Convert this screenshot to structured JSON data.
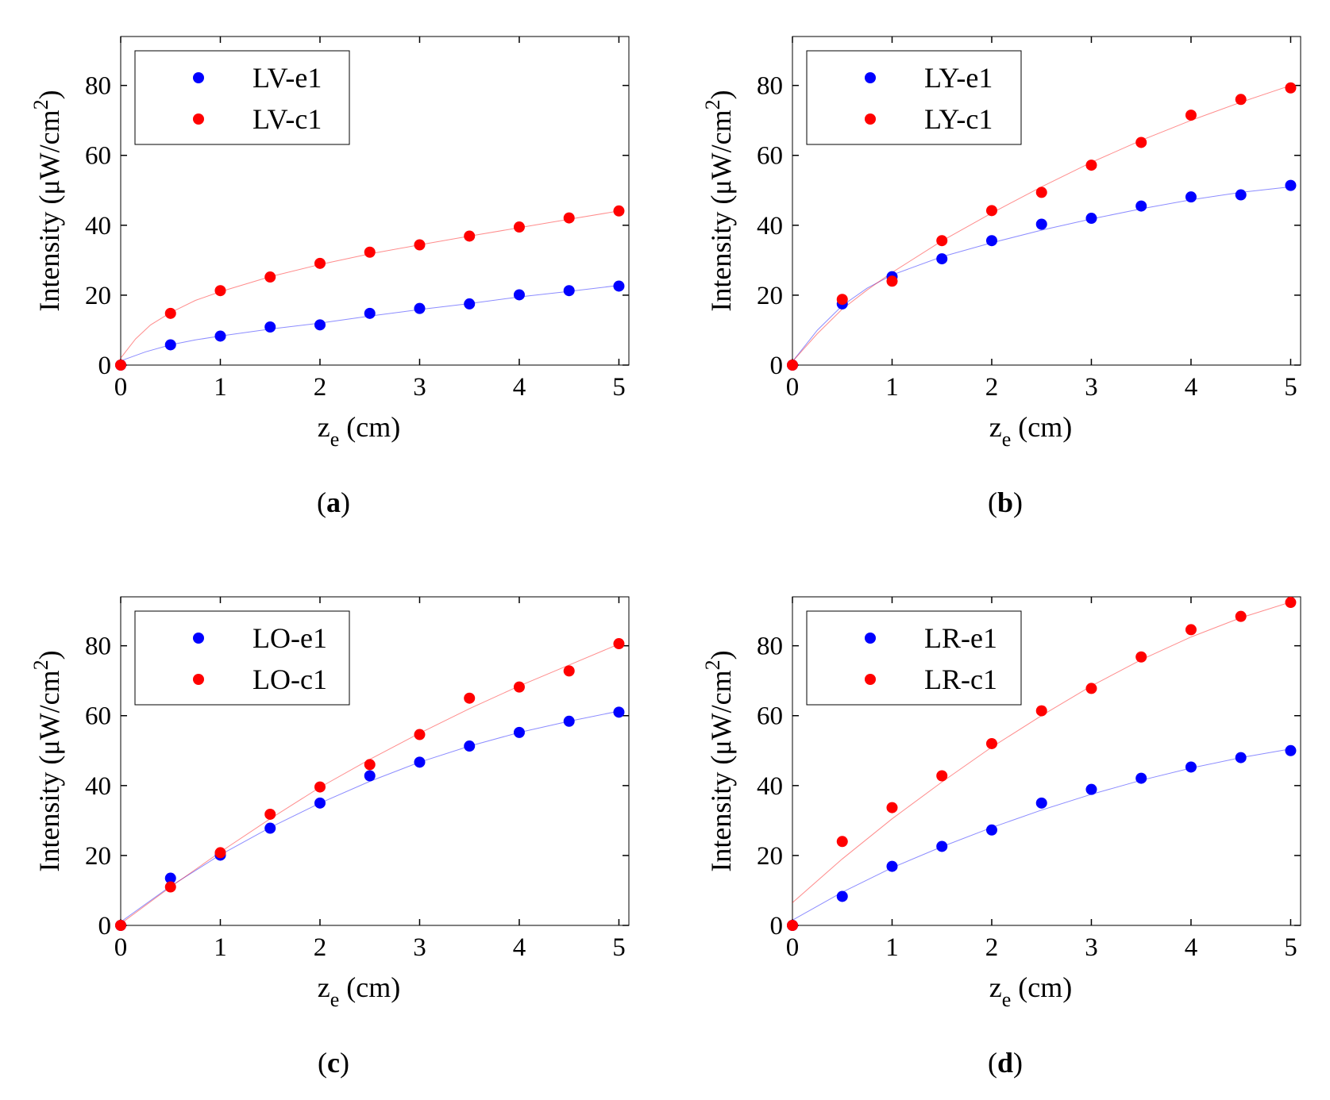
{
  "chart_data": [
    {
      "id": "a",
      "type": "scatter",
      "caption": {
        "open": "(",
        "letter": "a",
        "close": ")"
      },
      "xlabel": "z",
      "xlabel_sub": "e",
      "xlabel_unit": " (cm)",
      "ylabel": "Intensity (μW/cm",
      "ylabel_sup": "2",
      "ylabel_close": ")",
      "xlim": [
        0,
        5.1
      ],
      "ylim": [
        0,
        94
      ],
      "xticks": [
        0,
        1,
        2,
        3,
        4,
        5
      ],
      "yticks": [
        0,
        20,
        40,
        60,
        80
      ],
      "legend_position": "top-left",
      "series": [
        {
          "name": "LV-e1",
          "color": "#0000ff",
          "x": [
            0,
            0.5,
            1,
            1.5,
            2,
            2.5,
            3,
            3.5,
            4,
            4.5,
            5
          ],
          "y": [
            0,
            5.8,
            8.3,
            10.9,
            11.5,
            14.8,
            16.2,
            17.5,
            20.1,
            21.3,
            22.6
          ],
          "fit": [
            [
              0,
              1.2
            ],
            [
              0.25,
              3.8
            ],
            [
              0.5,
              5.8
            ],
            [
              0.75,
              7.2
            ],
            [
              1,
              8.3
            ],
            [
              1.5,
              10.3
            ],
            [
              2,
              12
            ],
            [
              2.5,
              14
            ],
            [
              3,
              15.9
            ],
            [
              3.5,
              17.6
            ],
            [
              4,
              19.5
            ],
            [
              4.5,
              21.1
            ],
            [
              5,
              22.8
            ]
          ]
        },
        {
          "name": "LV-c1",
          "color": "#ff0000",
          "x": [
            0,
            0.5,
            1,
            1.5,
            2,
            2.5,
            3,
            3.5,
            4,
            4.5,
            5
          ],
          "y": [
            0,
            14.8,
            21.3,
            25.2,
            29.1,
            32.3,
            34.4,
            36.9,
            39.5,
            42.1,
            44.1
          ],
          "fit": [
            [
              0,
              2
            ],
            [
              0.15,
              7.5
            ],
            [
              0.3,
              11.5
            ],
            [
              0.5,
              15
            ],
            [
              0.75,
              18.5
            ],
            [
              1,
              21
            ],
            [
              1.5,
              25.3
            ],
            [
              2,
              28.8
            ],
            [
              2.5,
              31.8
            ],
            [
              3,
              34.4
            ],
            [
              3.5,
              36.9
            ],
            [
              4,
              39.3
            ],
            [
              4.5,
              41.7
            ],
            [
              5,
              44.1
            ]
          ]
        }
      ]
    },
    {
      "id": "b",
      "type": "scatter",
      "caption": {
        "open": "(",
        "letter": "b",
        "close": ")"
      },
      "xlabel": "z",
      "xlabel_sub": "e",
      "xlabel_unit": " (cm)",
      "ylabel": "Intensity (μW/cm",
      "ylabel_sup": "2",
      "ylabel_close": ")",
      "xlim": [
        0,
        5.1
      ],
      "ylim": [
        0,
        94
      ],
      "xticks": [
        0,
        1,
        2,
        3,
        4,
        5
      ],
      "yticks": [
        0,
        20,
        40,
        60,
        80
      ],
      "legend_position": "top-left",
      "series": [
        {
          "name": "LY-e1",
          "color": "#0000ff",
          "x": [
            0,
            0.5,
            1,
            1.5,
            2,
            2.5,
            3,
            3.5,
            4,
            4.5,
            5
          ],
          "y": [
            0,
            17.5,
            25.3,
            30.4,
            35.6,
            40.3,
            42,
            45.5,
            48.1,
            48.7,
            51.4
          ],
          "fit": [
            [
              0,
              1
            ],
            [
              0.25,
              10
            ],
            [
              0.5,
              17
            ],
            [
              0.75,
              22
            ],
            [
              1,
              25.8
            ],
            [
              1.5,
              31
            ],
            [
              2,
              35
            ],
            [
              2.5,
              38.6
            ],
            [
              3,
              41.8
            ],
            [
              3.5,
              44.7
            ],
            [
              4,
              47.3
            ],
            [
              4.5,
              49.4
            ],
            [
              5,
              51
            ]
          ]
        },
        {
          "name": "LY-c1",
          "color": "#ff0000",
          "x": [
            0,
            0.5,
            1,
            1.5,
            2,
            2.5,
            3,
            3.5,
            4,
            4.5,
            5
          ],
          "y": [
            0,
            18.8,
            24,
            35.6,
            44.2,
            49.4,
            57.2,
            63.7,
            71.5,
            76,
            79.3
          ],
          "fit": [
            [
              0,
              1
            ],
            [
              0.25,
              9
            ],
            [
              0.5,
              16
            ],
            [
              0.75,
              21.5
            ],
            [
              1,
              26.5
            ],
            [
              1.5,
              35.5
            ],
            [
              2,
              43.5
            ],
            [
              2.5,
              51
            ],
            [
              3,
              58
            ],
            [
              3.5,
              64.3
            ],
            [
              4,
              70
            ],
            [
              4.5,
              75.2
            ],
            [
              5,
              80
            ]
          ]
        }
      ]
    },
    {
      "id": "c",
      "type": "scatter",
      "caption": {
        "open": "(",
        "letter": "c",
        "close": ")"
      },
      "xlabel": "z",
      "xlabel_sub": "e",
      "xlabel_unit": " (cm)",
      "ylabel": "Intensity (μW/cm",
      "ylabel_sup": "2",
      "ylabel_close": ")",
      "xlim": [
        0,
        5.1
      ],
      "ylim": [
        0,
        94
      ],
      "xticks": [
        0,
        1,
        2,
        3,
        4,
        5
      ],
      "yticks": [
        0,
        20,
        40,
        60,
        80
      ],
      "legend_position": "top-left",
      "series": [
        {
          "name": "LO-e1",
          "color": "#0000ff",
          "x": [
            0,
            0.5,
            1,
            1.5,
            2,
            2.5,
            3,
            3.5,
            4,
            4.5,
            5
          ],
          "y": [
            0,
            13.5,
            20.1,
            27.8,
            35,
            42.8,
            46.7,
            51.3,
            55.2,
            58.4,
            61
          ],
          "fit": [
            [
              0,
              1
            ],
            [
              0.5,
              11.2
            ],
            [
              1,
              20.2
            ],
            [
              1.5,
              28
            ],
            [
              2,
              35
            ],
            [
              2.5,
              41.2
            ],
            [
              3,
              46.7
            ],
            [
              3.5,
              51.3
            ],
            [
              4,
              55.2
            ],
            [
              4.5,
              58.4
            ],
            [
              5,
              61.3
            ]
          ]
        },
        {
          "name": "LO-c1",
          "color": "#ff0000",
          "x": [
            0,
            0.5,
            1,
            1.5,
            2,
            2.5,
            3,
            3.5,
            4,
            4.5,
            5
          ],
          "y": [
            0,
            11,
            20.8,
            31.8,
            39.6,
            46,
            54.6,
            65,
            68.2,
            72.8,
            80.6
          ],
          "fit": [
            [
              0,
              0.5
            ],
            [
              0.5,
              11
            ],
            [
              1,
              21
            ],
            [
              1.5,
              30.5
            ],
            [
              2,
              39.5
            ],
            [
              2.5,
              47.5
            ],
            [
              3,
              55
            ],
            [
              3.5,
              62
            ],
            [
              4,
              68.5
            ],
            [
              4.5,
              74.5
            ],
            [
              5,
              80.5
            ]
          ]
        }
      ]
    },
    {
      "id": "d",
      "type": "scatter",
      "caption": {
        "open": "(",
        "letter": "d",
        "close": ")"
      },
      "xlabel": "z",
      "xlabel_sub": "e",
      "xlabel_unit": " (cm)",
      "ylabel": "Intensity (μW/cm",
      "ylabel_sup": "2",
      "ylabel_close": ")",
      "xlim": [
        0,
        5.1
      ],
      "ylim": [
        0,
        94
      ],
      "xticks": [
        0,
        1,
        2,
        3,
        4,
        5
      ],
      "yticks": [
        0,
        20,
        40,
        60,
        80
      ],
      "legend_position": "top-left",
      "series": [
        {
          "name": "LR-e1",
          "color": "#0000ff",
          "x": [
            0,
            0.5,
            1,
            1.5,
            2,
            2.5,
            3,
            3.5,
            4,
            4.5,
            5
          ],
          "y": [
            0,
            8.3,
            16.9,
            22.6,
            27.3,
            35,
            38.9,
            42.1,
            45.3,
            48,
            50
          ],
          "fit": [
            [
              0,
              1.5
            ],
            [
              0.5,
              9.5
            ],
            [
              1,
              16.5
            ],
            [
              1.5,
              22.5
            ],
            [
              2,
              28
            ],
            [
              2.5,
              33
            ],
            [
              3,
              37.5
            ],
            [
              3.5,
              41.5
            ],
            [
              4,
              45
            ],
            [
              4.5,
              48
            ],
            [
              5,
              50.5
            ]
          ]
        },
        {
          "name": "LR-c1",
          "color": "#ff0000",
          "x": [
            0,
            0.5,
            1,
            1.5,
            2,
            2.5,
            3,
            3.5,
            4,
            4.5,
            5
          ],
          "y": [
            0,
            24,
            33.7,
            42.8,
            52,
            61.4,
            67.8,
            76.8,
            84.6,
            88.4,
            92.4
          ],
          "fit": [
            [
              0,
              6.5
            ],
            [
              0.5,
              19
            ],
            [
              1,
              30.5
            ],
            [
              1.5,
              41
            ],
            [
              2,
              51
            ],
            [
              2.5,
              60
            ],
            [
              3,
              68.5
            ],
            [
              3.5,
              76
            ],
            [
              4,
              82.5
            ],
            [
              4.5,
              88
            ],
            [
              5,
              92.5
            ]
          ]
        }
      ]
    }
  ]
}
